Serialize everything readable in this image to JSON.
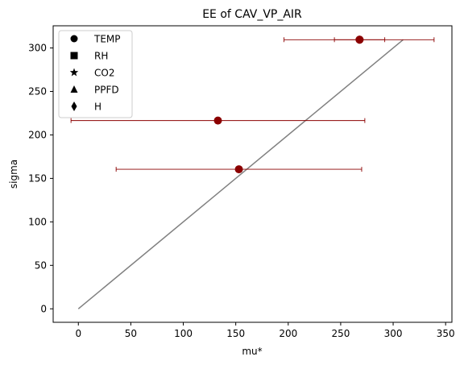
{
  "chart_data": {
    "type": "scatter",
    "title": "EE of CAV_VP_AIR",
    "xlabel": "mu*",
    "ylabel": "sigma",
    "xlim": [
      -24,
      356
    ],
    "ylim": [
      -15.5,
      325.5
    ],
    "xticks": [
      0,
      50,
      100,
      150,
      200,
      250,
      300,
      350
    ],
    "yticks": [
      0,
      50,
      100,
      150,
      200,
      250,
      300
    ],
    "grid": false,
    "legend_position": "top-left",
    "legend": [
      {
        "label": "TEMP",
        "marker": "circle"
      },
      {
        "label": "RH",
        "marker": "square"
      },
      {
        "label": "CO2",
        "marker": "star"
      },
      {
        "label": "PPFD",
        "marker": "triangle"
      },
      {
        "label": "H",
        "marker": "diamond"
      }
    ],
    "points": [
      {
        "x": 268,
        "y": 309.5,
        "xerr_low": 244,
        "xerr_high": 292
      },
      {
        "x": 268,
        "y": 309.5,
        "xerr_low": 196,
        "xerr_high": 339
      },
      {
        "x": 133,
        "y": 216.5,
        "xerr_low": -7,
        "xerr_high": 273
      },
      {
        "x": 153,
        "y": 160.5,
        "xerr_low": 36,
        "xerr_high": 270
      }
    ],
    "reference_line": {
      "x": [
        0,
        309.5
      ],
      "y": [
        0,
        309.5
      ]
    },
    "colors": {
      "points": "#8b0000",
      "errorbars": "#8b0000",
      "reference_line": "#808080"
    }
  }
}
